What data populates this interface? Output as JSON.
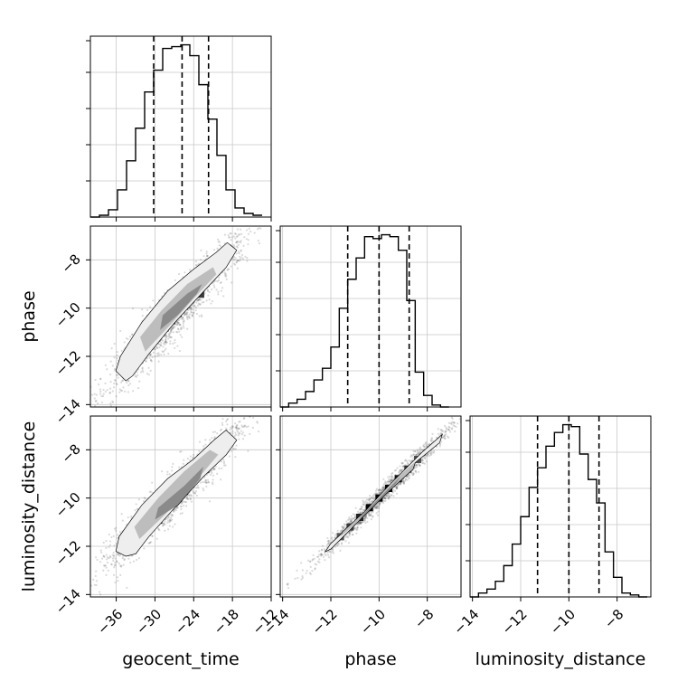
{
  "chart_data": {
    "type": "corner",
    "parameters": [
      "geocent_time",
      "phase",
      "luminosity_distance"
    ],
    "ranges": {
      "geocent_time": [
        -40,
        -12
      ],
      "phase": [
        -14.1,
        -6.6
      ],
      "luminosity_distance": [
        -14.1,
        -6.6
      ]
    },
    "tick_labels": {
      "geocent_time": [
        "−36",
        "−30",
        "−24",
        "−18",
        "−12"
      ],
      "phase_x": [
        "−14",
        "−12",
        "−10",
        "−8"
      ],
      "phase_y": [
        "−8",
        "−10",
        "−12",
        "−14"
      ],
      "luminosity_distance_x": [
        "−14",
        "−12",
        "−10",
        "−8"
      ],
      "luminosity_distance_y": [
        "−8",
        "−10",
        "−12",
        "−14"
      ]
    },
    "histograms": [
      {
        "parameter": "geocent_time",
        "quantiles": [
          -30.2,
          -25.8,
          -21.7
        ],
        "bins": [
          {
            "x0": -40.0,
            "x1": -38.6,
            "count": 0
          },
          {
            "x0": -38.6,
            "x1": -37.2,
            "count": 1
          },
          {
            "x0": -37.2,
            "x1": -35.8,
            "count": 4
          },
          {
            "x0": -35.8,
            "x1": -34.4,
            "count": 15
          },
          {
            "x0": -34.4,
            "x1": -33.0,
            "count": 31
          },
          {
            "x0": -33.0,
            "x1": -31.6,
            "count": 49
          },
          {
            "x0": -31.6,
            "x1": -30.2,
            "count": 69
          },
          {
            "x0": -30.2,
            "x1": -28.8,
            "count": 81
          },
          {
            "x0": -28.8,
            "x1": -27.4,
            "count": 93
          },
          {
            "x0": -27.4,
            "x1": -26.0,
            "count": 94
          },
          {
            "x0": -26.0,
            "x1": -24.6,
            "count": 95
          },
          {
            "x0": -24.6,
            "x1": -23.2,
            "count": 89
          },
          {
            "x0": -23.2,
            "x1": -21.8,
            "count": 73
          },
          {
            "x0": -21.8,
            "x1": -20.4,
            "count": 54
          },
          {
            "x0": -20.4,
            "x1": -19.0,
            "count": 34
          },
          {
            "x0": -19.0,
            "x1": -17.6,
            "count": 15
          },
          {
            "x0": -17.6,
            "x1": -16.2,
            "count": 5
          },
          {
            "x0": -16.2,
            "x1": -14.8,
            "count": 2
          },
          {
            "x0": -14.8,
            "x1": -13.4,
            "count": 1
          }
        ]
      },
      {
        "parameter": "phase",
        "quantiles": [
          -11.3,
          -10.0,
          -8.75
        ],
        "bins": [
          {
            "x0": -14.1,
            "x1": -13.75,
            "count": 0
          },
          {
            "x0": -13.75,
            "x1": -13.4,
            "count": 2
          },
          {
            "x0": -13.4,
            "x1": -13.05,
            "count": 4
          },
          {
            "x0": -13.05,
            "x1": -12.7,
            "count": 8
          },
          {
            "x0": -12.7,
            "x1": -12.35,
            "count": 14
          },
          {
            "x0": -12.35,
            "x1": -12.0,
            "count": 20
          },
          {
            "x0": -12.0,
            "x1": -11.65,
            "count": 31
          },
          {
            "x0": -11.65,
            "x1": -11.3,
            "count": 51
          },
          {
            "x0": -11.3,
            "x1": -10.95,
            "count": 66
          },
          {
            "x0": -10.95,
            "x1": -10.6,
            "count": 77
          },
          {
            "x0": -10.6,
            "x1": -10.25,
            "count": 88
          },
          {
            "x0": -10.25,
            "x1": -9.9,
            "count": 87
          },
          {
            "x0": -9.9,
            "x1": -9.55,
            "count": 89
          },
          {
            "x0": -9.55,
            "x1": -9.2,
            "count": 88
          },
          {
            "x0": -9.2,
            "x1": -8.85,
            "count": 81
          },
          {
            "x0": -8.85,
            "x1": -8.5,
            "count": 55
          },
          {
            "x0": -8.5,
            "x1": -8.15,
            "count": 18
          },
          {
            "x0": -8.15,
            "x1": -7.8,
            "count": 6
          },
          {
            "x0": -7.8,
            "x1": -7.45,
            "count": 1
          },
          {
            "x0": -7.45,
            "x1": -7.1,
            "count": 0
          }
        ]
      },
      {
        "parameter": "luminosity_distance",
        "quantiles": [
          -11.3,
          -10.0,
          -8.75
        ],
        "bins": [
          {
            "x0": -14.1,
            "x1": -13.75,
            "count": 0
          },
          {
            "x0": -13.75,
            "x1": -13.4,
            "count": 2
          },
          {
            "x0": -13.4,
            "x1": -13.05,
            "count": 4
          },
          {
            "x0": -13.05,
            "x1": -12.7,
            "count": 8
          },
          {
            "x0": -12.7,
            "x1": -12.35,
            "count": 16
          },
          {
            "x0": -12.35,
            "x1": -12.0,
            "count": 27
          },
          {
            "x0": -12.0,
            "x1": -11.65,
            "count": 41
          },
          {
            "x0": -11.65,
            "x1": -11.3,
            "count": 56
          },
          {
            "x0": -11.3,
            "x1": -10.95,
            "count": 66
          },
          {
            "x0": -10.95,
            "x1": -10.6,
            "count": 77
          },
          {
            "x0": -10.6,
            "x1": -10.25,
            "count": 84
          },
          {
            "x0": -10.25,
            "x1": -9.9,
            "count": 88
          },
          {
            "x0": -9.9,
            "x1": -9.55,
            "count": 87
          },
          {
            "x0": -9.55,
            "x1": -9.2,
            "count": 73
          },
          {
            "x0": -9.2,
            "x1": -8.85,
            "count": 60
          },
          {
            "x0": -8.85,
            "x1": -8.5,
            "count": 48
          },
          {
            "x0": -8.5,
            "x1": -8.15,
            "count": 23
          },
          {
            "x0": -8.15,
            "x1": -7.8,
            "count": 10
          },
          {
            "x0": -7.8,
            "x1": -7.45,
            "count": 2
          },
          {
            "x0": -7.45,
            "x1": -7.1,
            "count": 1
          },
          {
            "x0": -7.1,
            "x1": -6.75,
            "count": 0
          }
        ]
      }
    ],
    "scatter_panels": [
      {
        "x": "geocent_time",
        "y": "phase",
        "contours": [
          [
            [
              -34.5,
              -13.0
            ],
            [
              -36.0,
              -12.6
            ],
            [
              -35.3,
              -12.0
            ],
            [
              -32.0,
              -10.6
            ],
            [
              -28.0,
              -9.3
            ],
            [
              -24.0,
              -8.4
            ],
            [
              -20.5,
              -7.7
            ],
            [
              -18.8,
              -7.3
            ],
            [
              -17.4,
              -7.6
            ],
            [
              -19.0,
              -8.3
            ],
            [
              -22.5,
              -9.3
            ],
            [
              -27.0,
              -10.6
            ],
            [
              -31.0,
              -11.9
            ],
            [
              -33.5,
              -12.8
            ]
          ],
          [
            [
              -31.5,
              -11.8
            ],
            [
              -32.3,
              -11.2
            ],
            [
              -29.0,
              -10.1
            ],
            [
              -25.0,
              -9.0
            ],
            [
              -21.0,
              -8.3
            ],
            [
              -20.5,
              -8.6
            ],
            [
              -24.0,
              -9.6
            ],
            [
              -28.0,
              -10.8
            ]
          ],
          [
            [
              -29.2,
              -10.9
            ],
            [
              -28.8,
              -10.3
            ],
            [
              -25.0,
              -9.4
            ],
            [
              -22.7,
              -9.0
            ],
            [
              -23.5,
              -9.4
            ],
            [
              -26.5,
              -10.3
            ]
          ]
        ],
        "density_cells": [
          {
            "x": -30.5,
            "y": -11.2,
            "level": 0.5
          },
          {
            "x": -28.5,
            "y": -10.8,
            "level": 0.7
          },
          {
            "x": -27.5,
            "y": -10.5,
            "level": 0.9
          },
          {
            "x": -26.5,
            "y": -10.2,
            "level": 1.0
          },
          {
            "x": -25.5,
            "y": -9.9,
            "level": 0.8
          },
          {
            "x": -24.5,
            "y": -9.6,
            "level": 0.75
          },
          {
            "x": -23.0,
            "y": -9.4,
            "level": 0.6
          }
        ]
      },
      {
        "x": "geocent_time",
        "y": "luminosity_distance",
        "contours": [
          [
            [
              -34.5,
              -12.4
            ],
            [
              -36.0,
              -12.2
            ],
            [
              -35.5,
              -11.6
            ],
            [
              -32.0,
              -10.3
            ],
            [
              -28.0,
              -9.2
            ],
            [
              -24.0,
              -8.4
            ],
            [
              -20.8,
              -7.6
            ],
            [
              -19.0,
              -7.2
            ],
            [
              -17.4,
              -7.6
            ],
            [
              -19.0,
              -8.2
            ],
            [
              -22.5,
              -9.1
            ],
            [
              -27.0,
              -10.4
            ],
            [
              -31.0,
              -11.6
            ],
            [
              -33.0,
              -12.3
            ]
          ],
          [
            [
              -32.4,
              -11.7
            ],
            [
              -33.2,
              -11.2
            ],
            [
              -29.5,
              -10.0
            ],
            [
              -25.5,
              -8.9
            ],
            [
              -21.5,
              -8.0
            ],
            [
              -20.2,
              -8.2
            ],
            [
              -24.0,
              -9.4
            ],
            [
              -28.5,
              -10.7
            ]
          ],
          [
            [
              -30.0,
              -10.9
            ],
            [
              -29.5,
              -10.4
            ],
            [
              -25.5,
              -9.5
            ],
            [
              -22.5,
              -8.7
            ],
            [
              -23.0,
              -9.2
            ],
            [
              -26.5,
              -10.3
            ]
          ]
        ],
        "density_cells": [
          {
            "x": -32.8,
            "y": -11.3,
            "level": 0.6
          },
          {
            "x": -31.0,
            "y": -11.1,
            "level": 0.5
          },
          {
            "x": -29.5,
            "y": -10.9,
            "level": 0.7
          },
          {
            "x": -28.5,
            "y": -10.5,
            "level": 0.95
          },
          {
            "x": -27.5,
            "y": -10.2,
            "level": 0.85
          },
          {
            "x": -26.5,
            "y": -10.0,
            "level": 1.0
          },
          {
            "x": -25.5,
            "y": -9.7,
            "level": 0.85
          },
          {
            "x": -24.5,
            "y": -9.4,
            "level": 0.75
          },
          {
            "x": -23.5,
            "y": -9.1,
            "level": 0.6
          },
          {
            "x": -22.2,
            "y": -8.8,
            "level": 0.4
          }
        ]
      },
      {
        "x": "phase",
        "y": "luminosity_distance",
        "contours": [
          [
            [
              -12.2,
              -12.2
            ],
            [
              -12.0,
              -11.9
            ],
            [
              -10.8,
              -10.8
            ],
            [
              -9.5,
              -9.4
            ],
            [
              -8.2,
              -8.1
            ],
            [
              -7.4,
              -7.4
            ],
            [
              -7.5,
              -7.7
            ],
            [
              -8.6,
              -8.6
            ],
            [
              -9.9,
              -9.9
            ],
            [
              -11.2,
              -11.3
            ],
            [
              -12.0,
              -12.1
            ]
          ],
          [
            [
              -11.6,
              -11.6
            ],
            [
              -11.5,
              -11.4
            ],
            [
              -10.3,
              -10.3
            ],
            [
              -9.2,
              -9.1
            ],
            [
              -8.5,
              -8.5
            ],
            [
              -8.6,
              -8.8
            ],
            [
              -9.7,
              -9.8
            ],
            [
              -10.9,
              -11.0
            ]
          ],
          [
            [
              -10.9,
              -11.0
            ],
            [
              -10.7,
              -10.7
            ],
            [
              -9.8,
              -9.8
            ],
            [
              -9.1,
              -9.1
            ],
            [
              -9.3,
              -9.4
            ],
            [
              -10.2,
              -10.3
            ]
          ]
        ],
        "density_cells": [
          {
            "x": -11.6,
            "y": -11.6,
            "level": 0.4
          },
          {
            "x": -11.2,
            "y": -11.2,
            "level": 0.6
          },
          {
            "x": -10.8,
            "y": -10.8,
            "level": 0.8
          },
          {
            "x": -10.4,
            "y": -10.4,
            "level": 1.0
          },
          {
            "x": -10.0,
            "y": -10.0,
            "level": 1.0
          },
          {
            "x": -9.6,
            "y": -9.6,
            "level": 1.0
          },
          {
            "x": -9.2,
            "y": -9.2,
            "level": 0.9
          },
          {
            "x": -8.8,
            "y": -8.8,
            "level": 0.7
          },
          {
            "x": -8.4,
            "y": -8.4,
            "level": 0.45
          }
        ]
      }
    ]
  }
}
